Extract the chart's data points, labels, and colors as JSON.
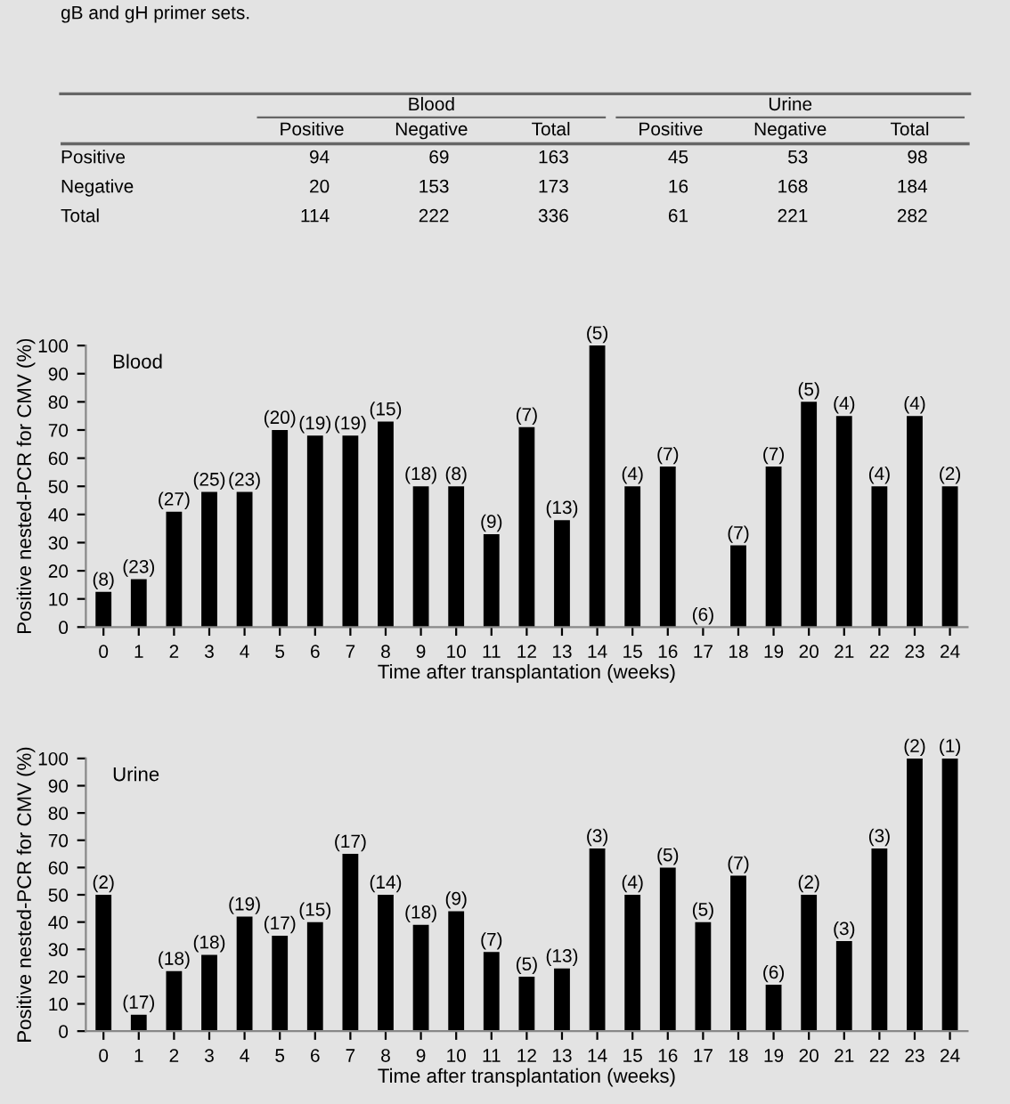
{
  "chart_data": [
    {
      "type": "other",
      "title": "gB and gH primer sets.",
      "categories": [
        "Positive",
        "Negative",
        "Total",
        "Positive",
        "Negative",
        "Total"
      ],
      "y_categories": [
        "Positive",
        "Negative",
        "Total"
      ],
      "cell_labels": [
        [
          "94",
          "69",
          "163",
          "45",
          "53",
          "98"
        ],
        [
          "20",
          "153",
          "173",
          "16",
          "168",
          "184"
        ],
        [
          "114",
          "222",
          "336",
          "61",
          "221",
          "282"
        ]
      ],
      "annotations": [
        "Blood",
        "Urine"
      ]
    },
    {
      "type": "bar",
      "color": "#000000",
      "xlabel": "Time after transplantation (weeks)",
      "ylabel": "Positive nested-PCR for CMV (%)",
      "categories": [
        "0",
        "1",
        "2",
        "3",
        "4",
        "5",
        "6",
        "7",
        "8",
        "9",
        "10",
        "11",
        "12",
        "13",
        "14",
        "15",
        "16",
        "17",
        "18",
        "19",
        "20",
        "21",
        "22",
        "23",
        "24"
      ],
      "values": [
        12.5,
        17,
        41,
        48,
        48,
        70,
        68,
        68,
        73,
        50,
        50,
        33,
        71,
        38,
        100,
        50,
        57,
        0,
        29,
        57,
        80,
        75,
        50,
        75,
        50
      ],
      "annotations": [
        "Blood",
        {
          "text": "(8)",
          "x": "0",
          "y": 12.5
        },
        {
          "text": "(23)",
          "x": "1",
          "y": 17
        },
        {
          "text": "(27)",
          "x": "2",
          "y": 41
        },
        {
          "text": "(25)",
          "x": "3",
          "y": 48
        },
        {
          "text": "(23)",
          "x": "4",
          "y": 48
        },
        {
          "text": "(20)",
          "x": "5",
          "y": 70
        },
        {
          "text": "(19)",
          "x": "6",
          "y": 68
        },
        {
          "text": "(19)",
          "x": "7",
          "y": 68
        },
        {
          "text": "(15)",
          "x": "8",
          "y": 73
        },
        {
          "text": "(18)",
          "x": "9",
          "y": 50
        },
        {
          "text": "(8)",
          "x": "10",
          "y": 50
        },
        {
          "text": "(9)",
          "x": "11",
          "y": 33
        },
        {
          "text": "(7)",
          "x": "12",
          "y": 71
        },
        {
          "text": "(13)",
          "x": "13",
          "y": 38
        },
        {
          "text": "(5)",
          "x": "14",
          "y": 100
        },
        {
          "text": "(4)",
          "x": "15",
          "y": 50
        },
        {
          "text": "(7)",
          "x": "16",
          "y": 57
        },
        {
          "text": "(6)",
          "x": "17",
          "y": 0
        },
        {
          "text": "(7)",
          "x": "18",
          "y": 29
        },
        {
          "text": "(7)",
          "x": "19",
          "y": 57
        },
        {
          "text": "(5)",
          "x": "20",
          "y": 80
        },
        {
          "text": "(4)",
          "x": "21",
          "y": 75
        },
        {
          "text": "(4)",
          "x": "22",
          "y": 50
        },
        {
          "text": "(4)",
          "x": "23",
          "y": 75
        },
        {
          "text": "(2)",
          "x": "24",
          "y": 50
        }
      ],
      "ylim": [
        0,
        100
      ],
      "yticks": [
        0,
        10,
        20,
        30,
        40,
        50,
        60,
        70,
        80,
        90,
        100
      ],
      "grid": false
    },
    {
      "type": "bar",
      "color": "#000000",
      "xlabel": "Time after transplantation (weeks)",
      "ylabel": "Positive nested-PCR for CMV (%)",
      "categories": [
        "0",
        "1",
        "2",
        "3",
        "4",
        "5",
        "6",
        "7",
        "8",
        "9",
        "10",
        "11",
        "12",
        "13",
        "14",
        "15",
        "16",
        "17",
        "18",
        "19",
        "20",
        "21",
        "22",
        "23",
        "24"
      ],
      "values": [
        50,
        6,
        22,
        28,
        42,
        35,
        40,
        65,
        50,
        39,
        44,
        29,
        20,
        23,
        67,
        50,
        60,
        40,
        57,
        17,
        50,
        33,
        67,
        100,
        100
      ],
      "annotations": [
        "Urine",
        {
          "text": "(2)",
          "x": "0",
          "y": 50
        },
        {
          "text": "(17)",
          "x": "1",
          "y": 6
        },
        {
          "text": "(18)",
          "x": "2",
          "y": 22
        },
        {
          "text": "(18)",
          "x": "3",
          "y": 28
        },
        {
          "text": "(19)",
          "x": "4",
          "y": 42
        },
        {
          "text": "(17)",
          "x": "5",
          "y": 35
        },
        {
          "text": "(15)",
          "x": "6",
          "y": 40
        },
        {
          "text": "(17)",
          "x": "7",
          "y": 65
        },
        {
          "text": "(14)",
          "x": "8",
          "y": 50
        },
        {
          "text": "(18)",
          "x": "9",
          "y": 39
        },
        {
          "text": "(9)",
          "x": "10",
          "y": 44
        },
        {
          "text": "(7)",
          "x": "11",
          "y": 29
        },
        {
          "text": "(5)",
          "x": "12",
          "y": 20
        },
        {
          "text": "(13)",
          "x": "13",
          "y": 23
        },
        {
          "text": "(3)",
          "x": "14",
          "y": 67
        },
        {
          "text": "(4)",
          "x": "15",
          "y": 50
        },
        {
          "text": "(5)",
          "x": "16",
          "y": 60
        },
        {
          "text": "(5)",
          "x": "17",
          "y": 40
        },
        {
          "text": "(7)",
          "x": "18",
          "y": 57
        },
        {
          "text": "(6)",
          "x": "19",
          "y": 17
        },
        {
          "text": "(2)",
          "x": "20",
          "y": 50
        },
        {
          "text": "(3)",
          "x": "21",
          "y": 33
        },
        {
          "text": "(3)",
          "x": "22",
          "y": 67
        },
        {
          "text": "(2)",
          "x": "23",
          "y": 100
        },
        {
          "text": "(1)",
          "x": "24",
          "y": 100
        }
      ],
      "ylim": [
        0,
        100
      ],
      "yticks": [
        0,
        10,
        20,
        30,
        40,
        50,
        60,
        70,
        80,
        90,
        100
      ],
      "grid": false
    }
  ]
}
